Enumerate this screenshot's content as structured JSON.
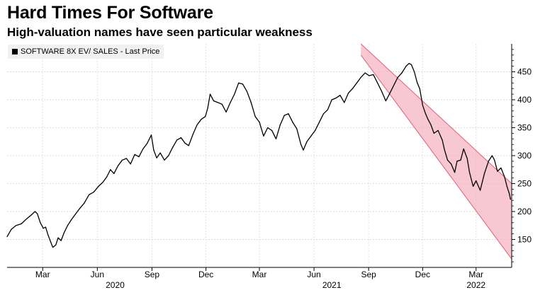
{
  "header": {
    "title": "Hard Times For Software",
    "subtitle": "High-valuation names have seen particular weakness"
  },
  "chart_data": {
    "type": "line",
    "title": "Hard Times For Software",
    "subtitle": "High-valuation names have seen particular weakness",
    "legend": [
      {
        "name": "SOFTWARE 8X EV/ SALES - Last Price",
        "color": "#000000",
        "placement": "top-left"
      }
    ],
    "y_axis": {
      "side": "right",
      "ylim": [
        100,
        500
      ],
      "ticks": [
        150,
        200,
        250,
        300,
        350,
        400,
        450
      ],
      "grid": true
    },
    "x_axis": {
      "range": [
        "2020-01-01",
        "2022-04-30"
      ],
      "month_ticks": [
        {
          "label": "Mar",
          "date": "2020-03-01"
        },
        {
          "label": "Jun",
          "date": "2020-06-01"
        },
        {
          "label": "Sep",
          "date": "2020-09-01"
        },
        {
          "label": "Dec",
          "date": "2020-12-01"
        },
        {
          "label": "Mar",
          "date": "2021-03-01"
        },
        {
          "label": "Jun",
          "date": "2021-06-01"
        },
        {
          "label": "Sep",
          "date": "2021-09-01"
        },
        {
          "label": "Dec",
          "date": "2021-12-01"
        },
        {
          "label": "Mar",
          "date": "2022-03-01"
        }
      ],
      "year_labels": [
        {
          "label": "2020",
          "date": "2020-07-01"
        },
        {
          "label": "2021",
          "date": "2021-07-01"
        },
        {
          "label": "2022",
          "date": "2022-03-01"
        }
      ]
    },
    "series": [
      {
        "name": "SOFTWARE 8X EV/ SALES - Last Price",
        "color": "#000000",
        "points": [
          [
            "2020-01-01",
            155
          ],
          [
            "2020-01-08",
            168
          ],
          [
            "2020-01-16",
            175
          ],
          [
            "2020-01-25",
            178
          ],
          [
            "2020-02-03",
            187
          ],
          [
            "2020-02-10",
            193
          ],
          [
            "2020-02-17",
            200
          ],
          [
            "2020-02-21",
            196
          ],
          [
            "2020-02-26",
            180
          ],
          [
            "2020-03-02",
            170
          ],
          [
            "2020-03-06",
            172
          ],
          [
            "2020-03-10",
            158
          ],
          [
            "2020-03-14",
            147
          ],
          [
            "2020-03-18",
            136
          ],
          [
            "2020-03-23",
            140
          ],
          [
            "2020-03-27",
            153
          ],
          [
            "2020-04-01",
            148
          ],
          [
            "2020-04-06",
            162
          ],
          [
            "2020-04-12",
            175
          ],
          [
            "2020-04-18",
            185
          ],
          [
            "2020-04-25",
            195
          ],
          [
            "2020-05-02",
            205
          ],
          [
            "2020-05-10",
            215
          ],
          [
            "2020-05-18",
            230
          ],
          [
            "2020-05-26",
            235
          ],
          [
            "2020-06-03",
            245
          ],
          [
            "2020-06-10",
            252
          ],
          [
            "2020-06-17",
            262
          ],
          [
            "2020-06-23",
            275
          ],
          [
            "2020-06-29",
            268
          ],
          [
            "2020-07-06",
            282
          ],
          [
            "2020-07-13",
            292
          ],
          [
            "2020-07-20",
            295
          ],
          [
            "2020-07-27",
            285
          ],
          [
            "2020-08-03",
            302
          ],
          [
            "2020-08-10",
            298
          ],
          [
            "2020-08-17",
            312
          ],
          [
            "2020-08-24",
            322
          ],
          [
            "2020-08-31",
            337
          ],
          [
            "2020-09-04",
            310
          ],
          [
            "2020-09-09",
            296
          ],
          [
            "2020-09-15",
            305
          ],
          [
            "2020-09-22",
            292
          ],
          [
            "2020-09-29",
            300
          ],
          [
            "2020-10-06",
            315
          ],
          [
            "2020-10-13",
            328
          ],
          [
            "2020-10-20",
            332
          ],
          [
            "2020-10-27",
            322
          ],
          [
            "2020-11-02",
            318
          ],
          [
            "2020-11-09",
            338
          ],
          [
            "2020-11-16",
            355
          ],
          [
            "2020-11-23",
            365
          ],
          [
            "2020-11-30",
            370
          ],
          [
            "2020-12-04",
            385
          ],
          [
            "2020-12-08",
            410
          ],
          [
            "2020-12-14",
            398
          ],
          [
            "2020-12-21",
            395
          ],
          [
            "2020-12-28",
            392
          ],
          [
            "2021-01-04",
            378
          ],
          [
            "2021-01-11",
            395
          ],
          [
            "2021-01-18",
            410
          ],
          [
            "2021-01-25",
            430
          ],
          [
            "2021-02-01",
            428
          ],
          [
            "2021-02-08",
            415
          ],
          [
            "2021-02-15",
            395
          ],
          [
            "2021-02-22",
            370
          ],
          [
            "2021-03-01",
            360
          ],
          [
            "2021-03-08",
            335
          ],
          [
            "2021-03-15",
            350
          ],
          [
            "2021-03-22",
            345
          ],
          [
            "2021-03-29",
            330
          ],
          [
            "2021-04-05",
            355
          ],
          [
            "2021-04-12",
            372
          ],
          [
            "2021-04-19",
            375
          ],
          [
            "2021-04-26",
            360
          ],
          [
            "2021-05-03",
            348
          ],
          [
            "2021-05-10",
            320
          ],
          [
            "2021-05-14",
            310
          ],
          [
            "2021-05-20",
            325
          ],
          [
            "2021-05-27",
            335
          ],
          [
            "2021-06-03",
            345
          ],
          [
            "2021-06-10",
            360
          ],
          [
            "2021-06-17",
            375
          ],
          [
            "2021-06-24",
            382
          ],
          [
            "2021-07-01",
            400
          ],
          [
            "2021-07-08",
            403
          ],
          [
            "2021-07-15",
            408
          ],
          [
            "2021-07-22",
            395
          ],
          [
            "2021-07-29",
            412
          ],
          [
            "2021-08-05",
            420
          ],
          [
            "2021-08-12",
            430
          ],
          [
            "2021-08-19",
            440
          ],
          [
            "2021-08-26",
            448
          ],
          [
            "2021-09-02",
            443
          ],
          [
            "2021-09-09",
            445
          ],
          [
            "2021-09-16",
            430
          ],
          [
            "2021-09-23",
            415
          ],
          [
            "2021-09-30",
            398
          ],
          [
            "2021-10-06",
            410
          ],
          [
            "2021-10-13",
            425
          ],
          [
            "2021-10-20",
            440
          ],
          [
            "2021-10-27",
            448
          ],
          [
            "2021-11-03",
            460
          ],
          [
            "2021-11-08",
            465
          ],
          [
            "2021-11-12",
            463
          ],
          [
            "2021-11-17",
            450
          ],
          [
            "2021-11-22",
            430
          ],
          [
            "2021-11-26",
            420
          ],
          [
            "2021-12-01",
            390
          ],
          [
            "2021-12-06",
            375
          ],
          [
            "2021-12-10",
            365
          ],
          [
            "2021-12-15",
            355
          ],
          [
            "2021-12-20",
            340
          ],
          [
            "2021-12-27",
            345
          ],
          [
            "2022-01-03",
            328
          ],
          [
            "2022-01-07",
            310
          ],
          [
            "2022-01-12",
            292
          ],
          [
            "2022-01-18",
            285
          ],
          [
            "2022-01-24",
            270
          ],
          [
            "2022-01-28",
            290
          ],
          [
            "2022-02-03",
            292
          ],
          [
            "2022-02-08",
            312
          ],
          [
            "2022-02-14",
            295
          ],
          [
            "2022-02-18",
            270
          ],
          [
            "2022-02-24",
            245
          ],
          [
            "2022-03-01",
            255
          ],
          [
            "2022-03-08",
            238
          ],
          [
            "2022-03-15",
            268
          ],
          [
            "2022-03-22",
            290
          ],
          [
            "2022-03-28",
            300
          ],
          [
            "2022-04-01",
            292
          ],
          [
            "2022-04-06",
            272
          ],
          [
            "2022-04-12",
            278
          ],
          [
            "2022-04-18",
            262
          ],
          [
            "2022-04-22",
            245
          ],
          [
            "2022-04-26",
            232
          ],
          [
            "2022-04-28",
            222
          ]
        ]
      }
    ],
    "annotations": [
      {
        "type": "downtrend-channel",
        "color": "#f4b6c2",
        "edge_color": "#e06078",
        "start": "2021-08-19",
        "end": "2022-04-30",
        "upper_start": 500,
        "upper_end": 250,
        "lower_start": 480,
        "lower_end": 115
      }
    ]
  }
}
